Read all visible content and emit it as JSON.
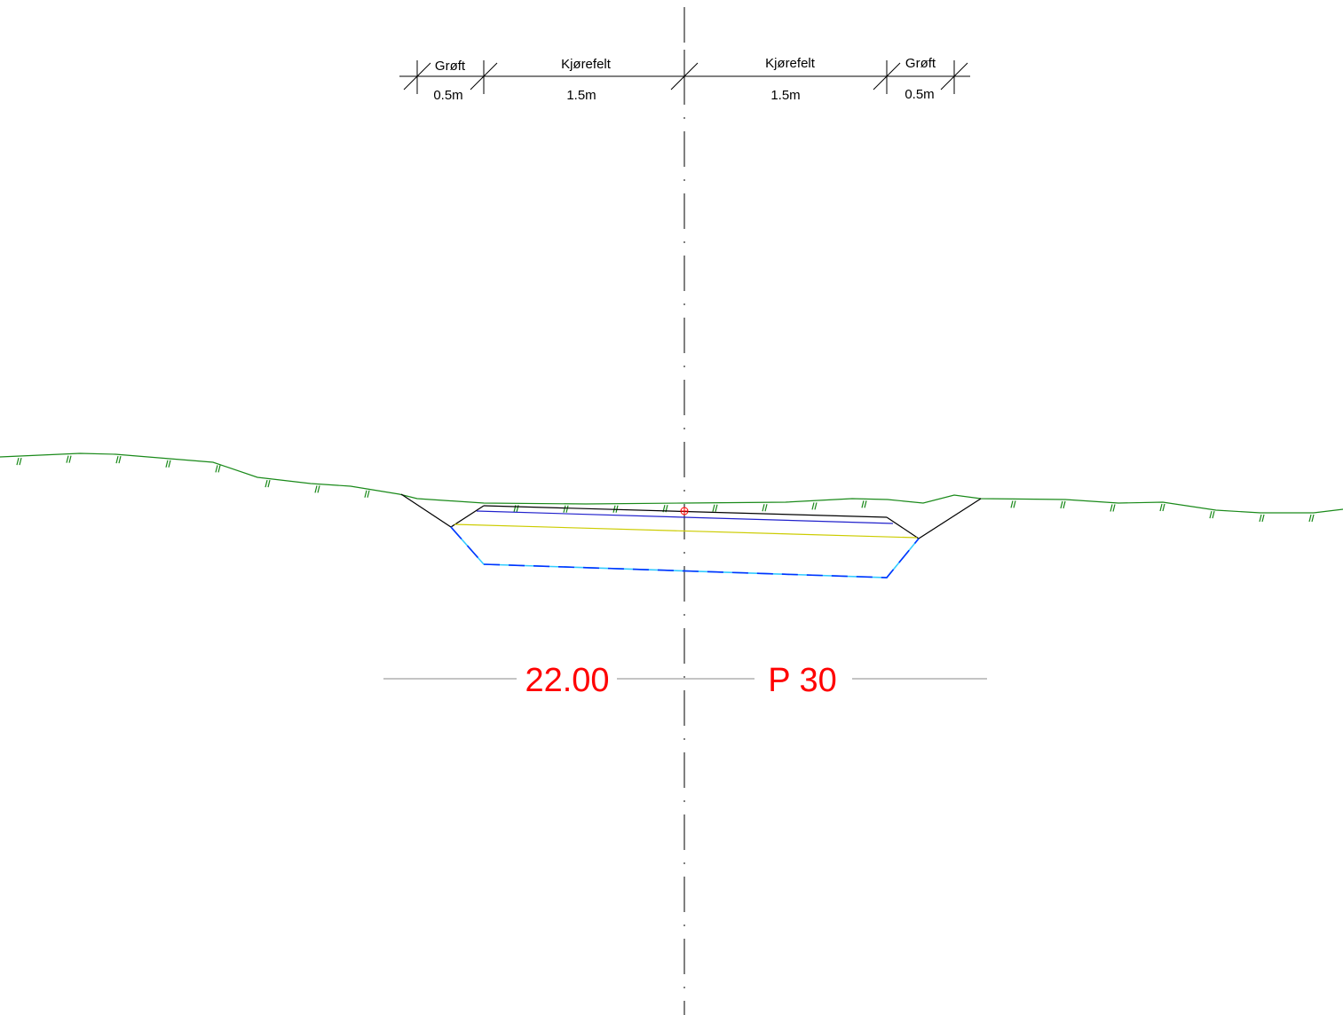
{
  "dimensions": {
    "left_ditch": {
      "label": "Grøft",
      "width": "0.5m"
    },
    "left_lane": {
      "label": "Kjørefelt",
      "width": "1.5m"
    },
    "right_lane": {
      "label": "Kjørefelt",
      "width": "1.5m"
    },
    "right_ditch": {
      "label": "Grøft",
      "width": "0.5m"
    }
  },
  "profile": {
    "station": "22.00",
    "label": "P 30"
  },
  "colors": {
    "terrain": "#1a8a1a",
    "centerline": "#000000",
    "road_surface": "#000000",
    "base_layer": "#2020cc",
    "sub_layer": "#cccc00",
    "excavation": "#0033ff",
    "excavation_alt": "#33ccff",
    "label_text": "#ff0000",
    "marker": "#ff0000",
    "guide_line": "#888888"
  }
}
